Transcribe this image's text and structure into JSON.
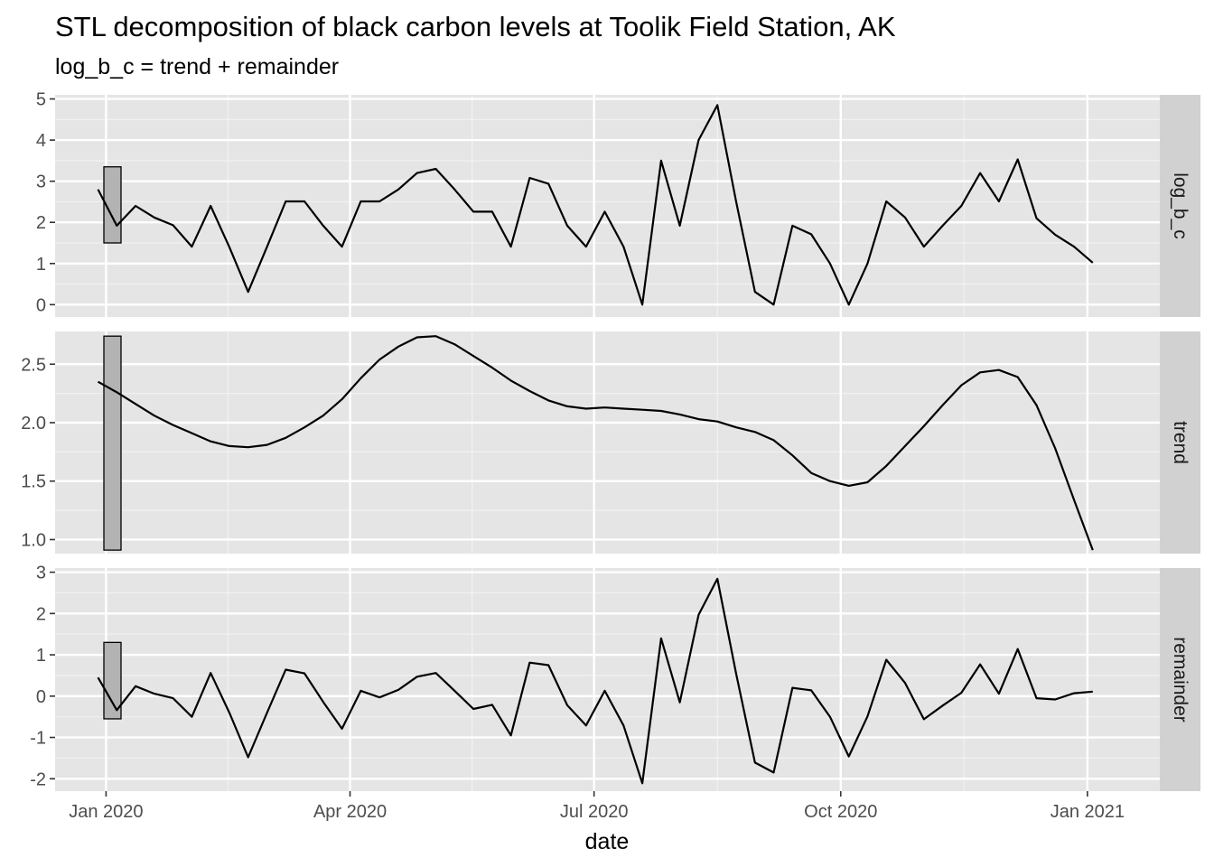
{
  "chart_data": {
    "type": "line",
    "title": "STL decomposition of black carbon levels at Toolik Field Station, AK",
    "subtitle": "log_b_c = trend + remainder",
    "xlabel": "date",
    "x_tick_labels": [
      "Jan 2020",
      "Apr 2020",
      "Jul 2020",
      "Oct 2020",
      "Jan 2021"
    ],
    "x_tick_dates": [
      "2020-01-01",
      "2020-04-01",
      "2020-07-01",
      "2020-10-01",
      "2021-01-01"
    ],
    "xlim": [
      "2019-12-13",
      "2021-01-28"
    ],
    "x": [
      "2019-12-29",
      "2020-01-05",
      "2020-01-12",
      "2020-01-19",
      "2020-01-26",
      "2020-02-02",
      "2020-02-09",
      "2020-02-16",
      "2020-02-23",
      "2020-03-01",
      "2020-03-08",
      "2020-03-15",
      "2020-03-22",
      "2020-03-29",
      "2020-04-05",
      "2020-04-12",
      "2020-04-19",
      "2020-04-26",
      "2020-05-03",
      "2020-05-10",
      "2020-05-17",
      "2020-05-24",
      "2020-05-31",
      "2020-06-07",
      "2020-06-14",
      "2020-06-21",
      "2020-06-28",
      "2020-07-05",
      "2020-07-12",
      "2020-07-19",
      "2020-07-26",
      "2020-08-02",
      "2020-08-09",
      "2020-08-16",
      "2020-08-23",
      "2020-08-30",
      "2020-09-06",
      "2020-09-13",
      "2020-09-20",
      "2020-09-27",
      "2020-10-04",
      "2020-10-11",
      "2020-10-18",
      "2020-10-25",
      "2020-11-01",
      "2020-11-08",
      "2020-11-15",
      "2020-11-22",
      "2020-11-29",
      "2020-12-06",
      "2020-12-13",
      "2020-12-20",
      "2020-12-27",
      "2021-01-03"
    ],
    "grid": true,
    "line_color": "#000000",
    "panel_background": "#e5e5e5",
    "strip_background": "#d1d1d1",
    "scale_bar_fill": "#b3b3b3",
    "panels": [
      {
        "name": "log_b_c",
        "ylim": [
          -0.3,
          5.1
        ],
        "y_ticks": [
          0,
          1,
          2,
          3,
          4,
          5
        ],
        "y_tick_labels": [
          "0",
          "1",
          "2",
          "3",
          "4",
          "5"
        ],
        "scale_bar_range": [
          1.5,
          3.35
        ],
        "values": [
          2.8,
          1.92,
          2.4,
          2.12,
          1.93,
          1.41,
          2.4,
          1.4,
          0.31,
          1.4,
          2.51,
          2.51,
          1.92,
          1.41,
          2.51,
          2.51,
          2.8,
          3.2,
          3.3,
          2.8,
          2.26,
          2.26,
          1.41,
          3.08,
          2.94,
          1.92,
          1.41,
          2.26,
          1.41,
          0.0,
          3.5,
          1.92,
          4.0,
          4.85,
          2.5,
          0.31,
          0.0,
          1.92,
          1.71,
          1.0,
          0.0,
          1.0,
          2.51,
          2.12,
          1.41,
          1.92,
          2.4,
          3.2,
          2.51,
          3.53,
          2.1,
          1.7,
          1.41,
          1.02
        ]
      },
      {
        "name": "trend",
        "ylim": [
          0.88,
          2.78
        ],
        "y_ticks": [
          1.0,
          1.5,
          2.0,
          2.5
        ],
        "y_tick_labels": [
          "1.0",
          "1.5",
          "2.0",
          "2.5"
        ],
        "scale_bar_range": [
          0.91,
          2.74
        ],
        "values": [
          2.35,
          2.26,
          2.16,
          2.06,
          1.98,
          1.91,
          1.84,
          1.8,
          1.79,
          1.81,
          1.87,
          1.96,
          2.06,
          2.2,
          2.38,
          2.54,
          2.65,
          2.73,
          2.74,
          2.67,
          2.57,
          2.47,
          2.36,
          2.27,
          2.19,
          2.14,
          2.12,
          2.13,
          2.12,
          2.11,
          2.1,
          2.07,
          2.03,
          2.01,
          1.96,
          1.92,
          1.85,
          1.72,
          1.57,
          1.5,
          1.46,
          1.49,
          1.63,
          1.8,
          1.97,
          2.15,
          2.32,
          2.43,
          2.45,
          2.39,
          2.15,
          1.78,
          1.34,
          0.91
        ]
      },
      {
        "name": "remainder",
        "ylim": [
          -2.3,
          3.1
        ],
        "y_ticks": [
          -2,
          -1,
          0,
          1,
          2,
          3
        ],
        "y_tick_labels": [
          "-2",
          "-1",
          "0",
          "1",
          "2",
          "3"
        ],
        "scale_bar_range": [
          -0.55,
          1.3
        ],
        "values": [
          0.45,
          -0.34,
          0.24,
          0.06,
          -0.05,
          -0.5,
          0.56,
          -0.4,
          -1.48,
          -0.41,
          0.64,
          0.55,
          -0.14,
          -0.79,
          0.13,
          -0.03,
          0.15,
          0.47,
          0.56,
          0.13,
          -0.31,
          -0.21,
          -0.95,
          0.81,
          0.75,
          -0.22,
          -0.71,
          0.13,
          -0.71,
          -2.11,
          1.4,
          -0.15,
          1.97,
          2.84,
          0.54,
          -1.61,
          -1.85,
          0.2,
          0.14,
          -0.5,
          -1.46,
          -0.49,
          0.88,
          0.32,
          -0.56,
          -0.23,
          0.08,
          0.77,
          0.06,
          1.14,
          -0.05,
          -0.08,
          0.07,
          0.11
        ]
      }
    ]
  }
}
